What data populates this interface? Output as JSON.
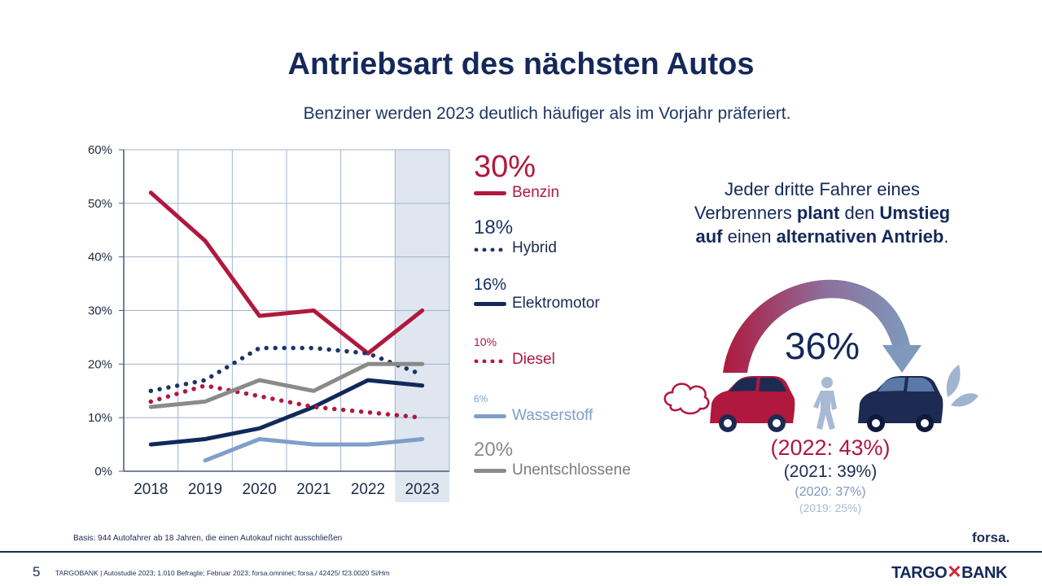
{
  "header": {
    "title": "Antriebsart des nächsten Autos",
    "subtitle": "Benziner werden 2023 deutlich häufiger als im Vorjahr präferiert."
  },
  "chart_data": {
    "type": "line",
    "x": [
      "2018",
      "2019",
      "2020",
      "2021",
      "2022",
      "2023"
    ],
    "ylim": [
      0,
      60
    ],
    "yticks": [
      "0%",
      "10%",
      "20%",
      "30%",
      "40%",
      "50%",
      "60%"
    ],
    "grid": true,
    "highlight_category": "2023",
    "legend_placement": "right",
    "series": [
      {
        "name": "Benzin",
        "label": "30%",
        "color": "#b0183d",
        "style": "solid",
        "values": [
          52,
          43,
          29,
          30,
          22,
          30
        ]
      },
      {
        "name": "Hybrid",
        "label": "18%",
        "color": "#1b3466",
        "style": "dotted",
        "values": [
          15,
          17,
          23,
          23,
          22,
          18
        ]
      },
      {
        "name": "Elektromotor",
        "label": "16%",
        "color": "#10295a",
        "style": "solid",
        "values": [
          5,
          6,
          8,
          12,
          17,
          16
        ]
      },
      {
        "name": "Diesel",
        "label": "10%",
        "color": "#b0183d",
        "style": "dotted",
        "values": [
          13,
          16,
          14,
          12,
          11,
          10
        ]
      },
      {
        "name": "Wasserstoff",
        "label": "6%",
        "color": "#7f9ec9",
        "style": "solid",
        "values": [
          null,
          2,
          6,
          5,
          5,
          6
        ]
      },
      {
        "name": "Unentschlossene",
        "label": "20%",
        "color": "#8a8a8a",
        "style": "solid",
        "values": [
          12,
          13,
          17,
          15,
          20,
          20
        ]
      }
    ]
  },
  "infobox": {
    "line1": "Jeder dritte Fahrer eines",
    "line2_a": "Verbrenners ",
    "line2_b": "plant",
    "line2_c": " den ",
    "line2_d": "Umstieg",
    "line3_a": "auf",
    "line3_b": " einen ",
    "line3_c": "alternativen Antrieb",
    "line3_d": ".",
    "big_value": "36%",
    "hist_2022": "(2022: 43%)",
    "hist_2021": "(2021: 39%)",
    "hist_2020": "(2020: 37%)",
    "hist_2019": "(2019: 25%)",
    "colors": {
      "red": "#b0183d",
      "navy": "#1d2b52",
      "light_blue": "#7f99bd"
    }
  },
  "footer": {
    "basis": "Basis: 944 Autofahrer ab 18 Jahren, die einen Autokauf nicht ausschließen",
    "forsa": "forsa.",
    "page_number": "5",
    "source": "TARGOBANK | Autostudie 2023; 1.010 Befragte; Februar 2023; forsa.omninet; forsa./ 42425/ f23.0020 Si/Hm",
    "brand_left": "TARGO",
    "brand_right": "BANK"
  }
}
